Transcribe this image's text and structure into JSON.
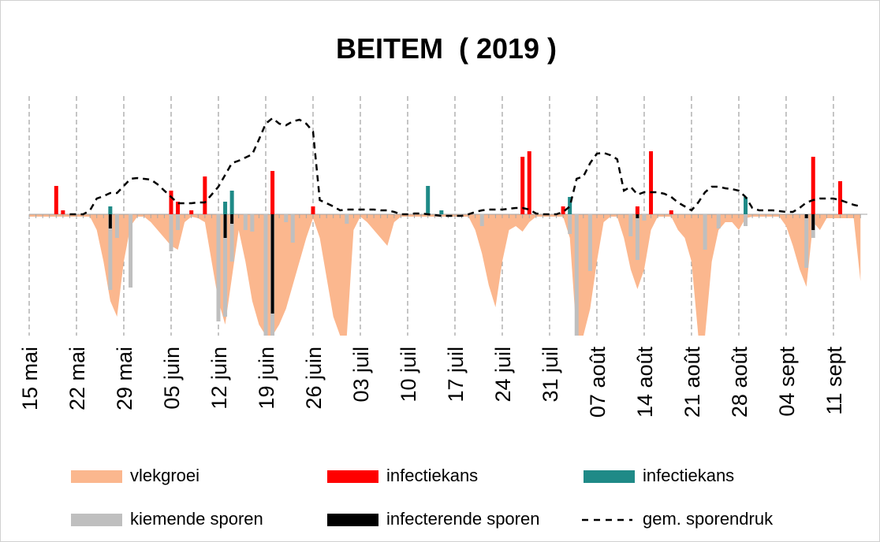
{
  "chart_data": {
    "type": "bar",
    "title": "BEITEM  ( 2019 )",
    "categories": [
      "15 mai",
      null,
      null,
      null,
      null,
      null,
      null,
      "22 mai",
      null,
      null,
      null,
      null,
      null,
      null,
      "29 mai",
      null,
      null,
      null,
      null,
      null,
      null,
      "05 juin",
      null,
      null,
      null,
      null,
      null,
      null,
      "12 juin",
      null,
      null,
      null,
      null,
      null,
      null,
      "19 juin",
      null,
      null,
      null,
      null,
      null,
      null,
      "26 juin",
      null,
      null,
      null,
      null,
      null,
      null,
      "03 juil",
      null,
      null,
      null,
      null,
      null,
      null,
      "10 juil",
      null,
      null,
      null,
      null,
      null,
      null,
      "17 juil",
      null,
      null,
      null,
      null,
      null,
      null,
      "24 juil",
      null,
      null,
      null,
      null,
      null,
      null,
      "31 juil",
      null,
      null,
      null,
      null,
      null,
      null,
      "07 août",
      null,
      null,
      null,
      null,
      null,
      null,
      "14 août",
      null,
      null,
      null,
      null,
      null,
      null,
      "21 août",
      null,
      null,
      null,
      null,
      null,
      null,
      "28 août",
      null,
      null,
      null,
      null,
      null,
      null,
      "04 sept",
      null,
      null,
      null,
      null,
      null,
      null,
      "11 sept",
      null,
      null,
      null,
      null
    ],
    "ylim": [
      -154,
      150
    ],
    "series": [
      {
        "name": "vlekgroei",
        "type": "area",
        "color": "#fbb78e",
        "values": [
          -3,
          -3,
          -3,
          -3,
          -3,
          -3,
          -3,
          -3,
          -3,
          -3,
          -20,
          -60,
          -110,
          -130,
          -60,
          -15,
          -3,
          -3,
          -10,
          -20,
          -30,
          -40,
          -45,
          -10,
          -3,
          -5,
          -10,
          -60,
          -110,
          -140,
          -80,
          -20,
          -60,
          -110,
          -140,
          -154,
          -154,
          -140,
          -120,
          -90,
          -60,
          -30,
          -5,
          -30,
          -80,
          -130,
          -154,
          -154,
          -20,
          -3,
          -10,
          -20,
          -30,
          -40,
          -10,
          -3,
          -3,
          -3,
          -3,
          -3,
          -3,
          -3,
          -3,
          -3,
          -3,
          -3,
          -20,
          -50,
          -90,
          -118,
          -60,
          -20,
          -15,
          -22,
          -10,
          -3,
          -3,
          -3,
          -3,
          -3,
          -30,
          -154,
          -154,
          -120,
          -60,
          -10,
          -3,
          -3,
          -30,
          -70,
          -95,
          -70,
          -20,
          -3,
          -3,
          -3,
          -20,
          -30,
          -60,
          -154,
          -154,
          -60,
          -20,
          -10,
          -10,
          -20,
          -5,
          -3,
          -3,
          -3,
          -3,
          -3,
          -15,
          -40,
          -70,
          -92,
          -10,
          -20,
          -5,
          -5,
          -5,
          -5,
          -5,
          -85
        ]
      },
      {
        "name": "infectiekans",
        "type": "bar",
        "color": "#ff0000",
        "values": [
          0,
          0,
          0,
          0,
          36,
          5,
          0,
          0,
          0,
          0,
          0,
          0,
          0,
          0,
          0,
          0,
          0,
          0,
          0,
          0,
          0,
          30,
          16,
          0,
          5,
          0,
          48,
          0,
          0,
          0,
          0,
          0,
          0,
          0,
          0,
          0,
          55,
          0,
          0,
          0,
          0,
          0,
          10,
          0,
          0,
          0,
          0,
          0,
          0,
          0,
          0,
          0,
          0,
          0,
          0,
          0,
          0,
          0,
          0,
          0,
          0,
          0,
          0,
          0,
          0,
          0,
          0,
          0,
          0,
          0,
          0,
          0,
          0,
          73,
          80,
          0,
          0,
          0,
          0,
          10,
          0,
          0,
          0,
          0,
          0,
          0,
          0,
          0,
          0,
          0,
          10,
          0,
          80,
          0,
          0,
          5,
          0,
          0,
          0,
          0,
          0,
          0,
          0,
          0,
          0,
          0,
          0,
          0,
          0,
          0,
          0,
          0,
          0,
          0,
          0,
          0,
          73,
          0,
          0,
          0,
          42,
          0,
          0,
          0
        ]
      },
      {
        "name": "infectiekans",
        "type": "bar",
        "color": "#1f8a87",
        "values": [
          0,
          0,
          0,
          0,
          0,
          0,
          0,
          0,
          0,
          0,
          0,
          0,
          10,
          0,
          0,
          0,
          0,
          0,
          0,
          0,
          0,
          0,
          0,
          0,
          0,
          0,
          0,
          0,
          0,
          16,
          30,
          0,
          0,
          0,
          0,
          0,
          0,
          0,
          0,
          0,
          0,
          0,
          0,
          0,
          0,
          0,
          0,
          0,
          0,
          0,
          0,
          0,
          0,
          0,
          0,
          0,
          0,
          0,
          0,
          36,
          0,
          5,
          0,
          0,
          0,
          0,
          0,
          0,
          0,
          0,
          0,
          0,
          0,
          0,
          0,
          0,
          0,
          0,
          0,
          0,
          22,
          0,
          0,
          0,
          0,
          0,
          0,
          0,
          0,
          0,
          0,
          0,
          0,
          0,
          0,
          0,
          0,
          0,
          0,
          0,
          0,
          0,
          0,
          0,
          0,
          0,
          22,
          0,
          0,
          0,
          0,
          0,
          0,
          0,
          0,
          0,
          0,
          0,
          0,
          0,
          0,
          0,
          0,
          0
        ]
      },
      {
        "name": "kiemende sporen",
        "type": "bar",
        "color": "#bfbfbf",
        "values": [
          0,
          0,
          0,
          0,
          0,
          0,
          0,
          0,
          0,
          0,
          0,
          0,
          -96,
          -30,
          0,
          -93,
          0,
          0,
          0,
          0,
          0,
          -47,
          -20,
          0,
          0,
          0,
          0,
          0,
          -136,
          -130,
          -60,
          0,
          -20,
          -22,
          0,
          -154,
          -154,
          0,
          -10,
          -36,
          0,
          0,
          0,
          0,
          0,
          0,
          0,
          -12,
          0,
          0,
          0,
          0,
          0,
          0,
          0,
          0,
          0,
          0,
          0,
          0,
          0,
          0,
          0,
          0,
          0,
          0,
          0,
          -15,
          0,
          0,
          0,
          0,
          0,
          0,
          0,
          0,
          0,
          0,
          0,
          0,
          -25,
          -154,
          0,
          -72,
          0,
          0,
          0,
          0,
          0,
          -28,
          -58,
          -8,
          0,
          0,
          0,
          0,
          0,
          0,
          0,
          0,
          -45,
          0,
          -18,
          0,
          0,
          0,
          -15,
          0,
          0,
          0,
          0,
          0,
          0,
          0,
          0,
          -68,
          -30,
          0,
          0,
          0,
          0,
          0,
          0,
          0
        ]
      },
      {
        "name": "infecterende sporen",
        "type": "bar",
        "color": "#000000",
        "values": [
          0,
          0,
          0,
          0,
          0,
          0,
          0,
          0,
          0,
          0,
          0,
          0,
          -18,
          0,
          0,
          0,
          0,
          0,
          0,
          0,
          0,
          0,
          0,
          0,
          0,
          0,
          0,
          0,
          0,
          -30,
          -12,
          0,
          0,
          0,
          0,
          0,
          -126,
          0,
          0,
          0,
          0,
          0,
          0,
          0,
          0,
          0,
          0,
          0,
          0,
          0,
          0,
          0,
          0,
          0,
          0,
          0,
          0,
          0,
          0,
          0,
          0,
          0,
          0,
          0,
          0,
          0,
          0,
          0,
          0,
          0,
          0,
          0,
          0,
          0,
          0,
          0,
          0,
          0,
          0,
          0,
          0,
          0,
          0,
          0,
          0,
          0,
          0,
          0,
          0,
          0,
          -5,
          0,
          0,
          0,
          0,
          0,
          0,
          0,
          0,
          0,
          0,
          0,
          0,
          0,
          0,
          0,
          0,
          0,
          0,
          0,
          0,
          0,
          0,
          0,
          0,
          -5,
          -20,
          0,
          0,
          0,
          0,
          0,
          0,
          0
        ]
      },
      {
        "name": "gem. sporendruk",
        "type": "line",
        "color": "#000000",
        "values": [
          null,
          null,
          null,
          null,
          null,
          null,
          0,
          0,
          0,
          5,
          20,
          23,
          27,
          27,
          36,
          45,
          46,
          45,
          44,
          38,
          30,
          22,
          14,
          14,
          14,
          15,
          15,
          25,
          35,
          50,
          65,
          68,
          72,
          76,
          95,
          115,
          122,
          115,
          113,
          118,
          120,
          115,
          105,
          18,
          14,
          10,
          5,
          6,
          6,
          6,
          6,
          6,
          5,
          5,
          3,
          0,
          0,
          1,
          1,
          0,
          -1,
          -2,
          -2,
          -2,
          -2,
          0,
          3,
          5,
          6,
          6,
          6,
          7,
          8,
          8,
          6,
          1,
          0,
          0,
          0,
          3,
          10,
          45,
          48,
          65,
          77,
          78,
          75,
          70,
          30,
          35,
          25,
          28,
          28,
          28,
          26,
          22,
          15,
          10,
          5,
          15,
          28,
          35,
          35,
          33,
          32,
          30,
          22,
          8,
          5,
          5,
          5,
          4,
          3,
          3,
          8,
          15,
          18,
          20,
          20,
          20,
          18,
          15,
          12,
          10
        ]
      }
    ]
  }
}
